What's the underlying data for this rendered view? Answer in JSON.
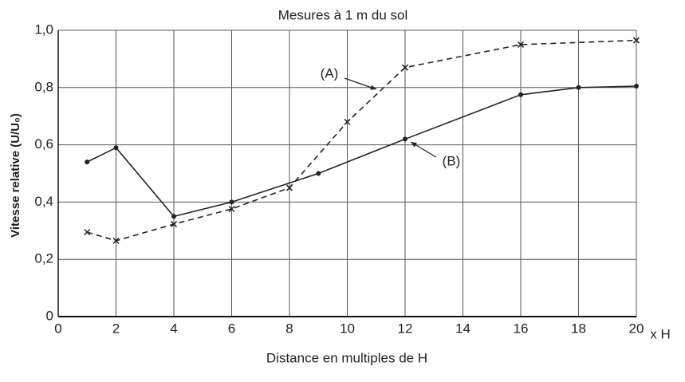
{
  "chart_data": {
    "type": "line",
    "title": "Mesures à 1 m du sol",
    "x_label": "Distance en multiples de H",
    "x_unit": "x H",
    "y_label": "Vitesse relative (U/U₀)",
    "xlim": [
      0,
      20
    ],
    "xticks": [
      0,
      2,
      4,
      6,
      8,
      10,
      12,
      14,
      16,
      18,
      20
    ],
    "ylim": [
      0,
      1.0
    ],
    "yticks": [
      0,
      {
        "value": 0.2,
        "label": "0,2"
      },
      {
        "value": 0.4,
        "label": "0,4"
      },
      {
        "value": 0.6,
        "label": "0,6"
      },
      {
        "value": 0.8,
        "label": "0,8"
      },
      {
        "value": 1.0,
        "label": "1,0"
      }
    ],
    "grid": true,
    "series": [
      {
        "name": "(A)",
        "color": "#222222",
        "dash": true,
        "marker": "x",
        "x": [
          1,
          2,
          4,
          6,
          8,
          10,
          12,
          16,
          20
        ],
        "values": [
          0.295,
          0.265,
          0.323,
          0.376,
          0.45,
          0.68,
          0.87,
          0.95,
          0.965
        ]
      },
      {
        "name": "(B)",
        "color": "#222222",
        "dash": false,
        "marker": "dot",
        "x": [
          1,
          2,
          4,
          6,
          9,
          12,
          16,
          18,
          20
        ],
        "values": [
          0.54,
          0.59,
          0.35,
          0.4,
          0.5,
          0.62,
          0.775,
          0.8,
          0.805
        ]
      }
    ]
  }
}
